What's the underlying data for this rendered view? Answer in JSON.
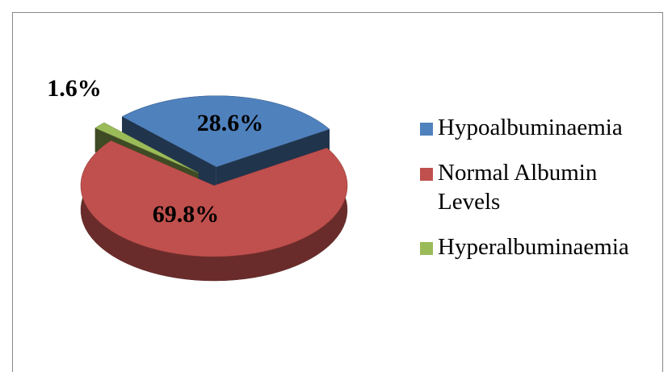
{
  "chart_data": {
    "type": "pie",
    "categories": [
      "Hypoalbuminaemia",
      "Normal Albumin Levels",
      "Hyperalbuminaemia"
    ],
    "values": [
      28.6,
      69.8,
      1.6
    ],
    "value_labels": [
      "28.6%",
      "69.8%",
      "1.6%"
    ],
    "colors": [
      "#4f81bd",
      "#c0504d",
      "#9bbb59"
    ],
    "legend": "right"
  }
}
